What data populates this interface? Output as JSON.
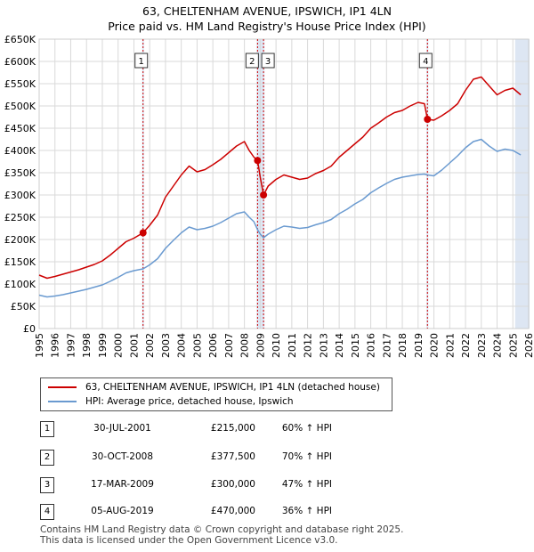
{
  "title_line1": "63, CHELTENHAM AVENUE, IPSWICH, IP1 4LN",
  "title_line2": "Price paid vs. HM Land Registry's House Price Index (HPI)",
  "colors": {
    "property": "#cc0000",
    "hpi": "#6a9ad0",
    "marker_line": "#cc0000",
    "shade": "#dde6f3"
  },
  "legend": {
    "property": "63, CHELTENHAM AVENUE, IPSWICH, IP1 4LN (detached house)",
    "hpi": "HPI: Average price, detached house, Ipswich"
  },
  "transactions": [
    {
      "num": "1",
      "date": "30-JUL-2001",
      "price": "£215,000",
      "hpi": "60% ↑ HPI"
    },
    {
      "num": "2",
      "date": "30-OCT-2008",
      "price": "£377,500",
      "hpi": "70% ↑ HPI"
    },
    {
      "num": "3",
      "date": "17-MAR-2009",
      "price": "£300,000",
      "hpi": "47% ↑ HPI"
    },
    {
      "num": "4",
      "date": "05-AUG-2019",
      "price": "£470,000",
      "hpi": "36% ↑ HPI"
    }
  ],
  "footer_line1": "Contains HM Land Registry data © Crown copyright and database right 2025.",
  "footer_line2": "This data is licensed under the Open Government Licence v3.0.",
  "chart_data": {
    "type": "line",
    "title": "63, CHELTENHAM AVENUE, IPSWICH, IP1 4LN — Price paid vs. HM Land Registry's House Price Index (HPI)",
    "xlabel": "",
    "ylabel": "",
    "xlim": [
      1995,
      2026
    ],
    "ylim": [
      0,
      650000
    ],
    "yticks": [
      0,
      50000,
      100000,
      150000,
      200000,
      250000,
      300000,
      350000,
      400000,
      450000,
      500000,
      550000,
      600000,
      650000
    ],
    "ytick_labels": [
      "£0",
      "£50K",
      "£100K",
      "£150K",
      "£200K",
      "£250K",
      "£300K",
      "£350K",
      "£400K",
      "£450K",
      "£500K",
      "£550K",
      "£600K",
      "£650K"
    ],
    "xticks": [
      1995,
      1996,
      1997,
      1998,
      1999,
      2000,
      2001,
      2002,
      2003,
      2004,
      2005,
      2006,
      2007,
      2008,
      2009,
      2010,
      2011,
      2012,
      2013,
      2014,
      2015,
      2016,
      2017,
      2018,
      2019,
      2020,
      2021,
      2022,
      2023,
      2024,
      2025,
      2026
    ],
    "xtick_labels": [
      "1995",
      "1996",
      "1997",
      "1998",
      "1999",
      "2000",
      "2001",
      "2002",
      "2003",
      "2004",
      "2005",
      "2006",
      "2007",
      "2008",
      "2009",
      "2010",
      "2011",
      "2012",
      "2013",
      "2014",
      "2015",
      "2016",
      "2017",
      "2018",
      "2019",
      "2020",
      "2021",
      "2022",
      "2023",
      "2024",
      "2025",
      "2026"
    ],
    "grid": true,
    "legend_position": "below",
    "shaded_regions": [
      [
        2001.58,
        2001.58
      ],
      [
        2008.83,
        2009.21
      ],
      [
        2019.59,
        2019.59
      ],
      [
        2025.2,
        2026
      ]
    ],
    "series": [
      {
        "name": "63, CHELTENHAM AVENUE, IPSWICH, IP1 4LN (detached house)",
        "x": [
          1995.0,
          1995.5,
          1996.0,
          1996.5,
          1997.0,
          1997.5,
          1998.0,
          1998.5,
          1999.0,
          1999.5,
          2000.0,
          2000.5,
          2001.0,
          2001.58,
          2002.0,
          2002.5,
          2003.0,
          2003.5,
          2004.0,
          2004.5,
          2005.0,
          2005.5,
          2006.0,
          2006.5,
          2007.0,
          2007.5,
          2008.0,
          2008.3,
          2008.6,
          2008.83,
          2009.0,
          2009.21,
          2009.5,
          2010.0,
          2010.5,
          2011.0,
          2011.5,
          2012.0,
          2012.5,
          2013.0,
          2013.5,
          2014.0,
          2014.5,
          2015.0,
          2015.5,
          2016.0,
          2016.5,
          2017.0,
          2017.5,
          2018.0,
          2018.5,
          2019.0,
          2019.4,
          2019.59,
          2020.0,
          2020.5,
          2021.0,
          2021.5,
          2022.0,
          2022.5,
          2023.0,
          2023.5,
          2024.0,
          2024.5,
          2025.0,
          2025.5
        ],
        "values": [
          120000,
          113000,
          117000,
          122000,
          127000,
          132000,
          138000,
          144000,
          152000,
          165000,
          180000,
          195000,
          203000,
          215000,
          232000,
          255000,
          295000,
          320000,
          345000,
          365000,
          352000,
          357000,
          368000,
          380000,
          395000,
          410000,
          420000,
          400000,
          385000,
          377500,
          340000,
          300000,
          320000,
          335000,
          345000,
          340000,
          335000,
          338000,
          348000,
          355000,
          365000,
          385000,
          400000,
          415000,
          430000,
          450000,
          462000,
          475000,
          485000,
          490000,
          500000,
          508000,
          505000,
          470000,
          468000,
          478000,
          490000,
          505000,
          535000,
          560000,
          565000,
          545000,
          525000,
          535000,
          540000,
          525000
        ]
      },
      {
        "name": "HPI: Average price, detached house, Ipswich",
        "x": [
          1995.0,
          1995.5,
          1996.0,
          1996.5,
          1997.0,
          1997.5,
          1998.0,
          1998.5,
          1999.0,
          1999.5,
          2000.0,
          2000.5,
          2001.0,
          2001.58,
          2002.0,
          2002.5,
          2003.0,
          2003.5,
          2004.0,
          2004.5,
          2005.0,
          2005.5,
          2006.0,
          2006.5,
          2007.0,
          2007.5,
          2008.0,
          2008.3,
          2008.6,
          2008.83,
          2009.0,
          2009.21,
          2009.5,
          2010.0,
          2010.5,
          2011.0,
          2011.5,
          2012.0,
          2012.5,
          2013.0,
          2013.5,
          2014.0,
          2014.5,
          2015.0,
          2015.5,
          2016.0,
          2016.5,
          2017.0,
          2017.5,
          2018.0,
          2018.5,
          2019.0,
          2019.4,
          2019.59,
          2020.0,
          2020.5,
          2021.0,
          2021.5,
          2022.0,
          2022.5,
          2023.0,
          2023.5,
          2024.0,
          2024.5,
          2025.0,
          2025.5
        ],
        "values": [
          75000,
          71000,
          73000,
          76000,
          80000,
          84000,
          88000,
          93000,
          98000,
          106000,
          115000,
          125000,
          130000,
          134000,
          143000,
          157000,
          180000,
          198000,
          215000,
          228000,
          222000,
          225000,
          230000,
          238000,
          248000,
          258000,
          262000,
          250000,
          240000,
          222000,
          212000,
          204000,
          212000,
          222000,
          230000,
          228000,
          225000,
          227000,
          233000,
          238000,
          245000,
          258000,
          268000,
          280000,
          290000,
          305000,
          316000,
          326000,
          335000,
          340000,
          343000,
          346000,
          347000,
          345000,
          343000,
          356000,
          372000,
          388000,
          406000,
          420000,
          425000,
          410000,
          398000,
          403000,
          400000,
          390000
        ]
      }
    ],
    "markers": [
      {
        "label": "1",
        "x": 2001.58,
        "y": 215000
      },
      {
        "label": "2",
        "x": 2008.83,
        "y": 377500
      },
      {
        "label": "3",
        "x": 2009.21,
        "y": 300000
      },
      {
        "label": "4",
        "x": 2019.59,
        "y": 470000
      }
    ]
  }
}
